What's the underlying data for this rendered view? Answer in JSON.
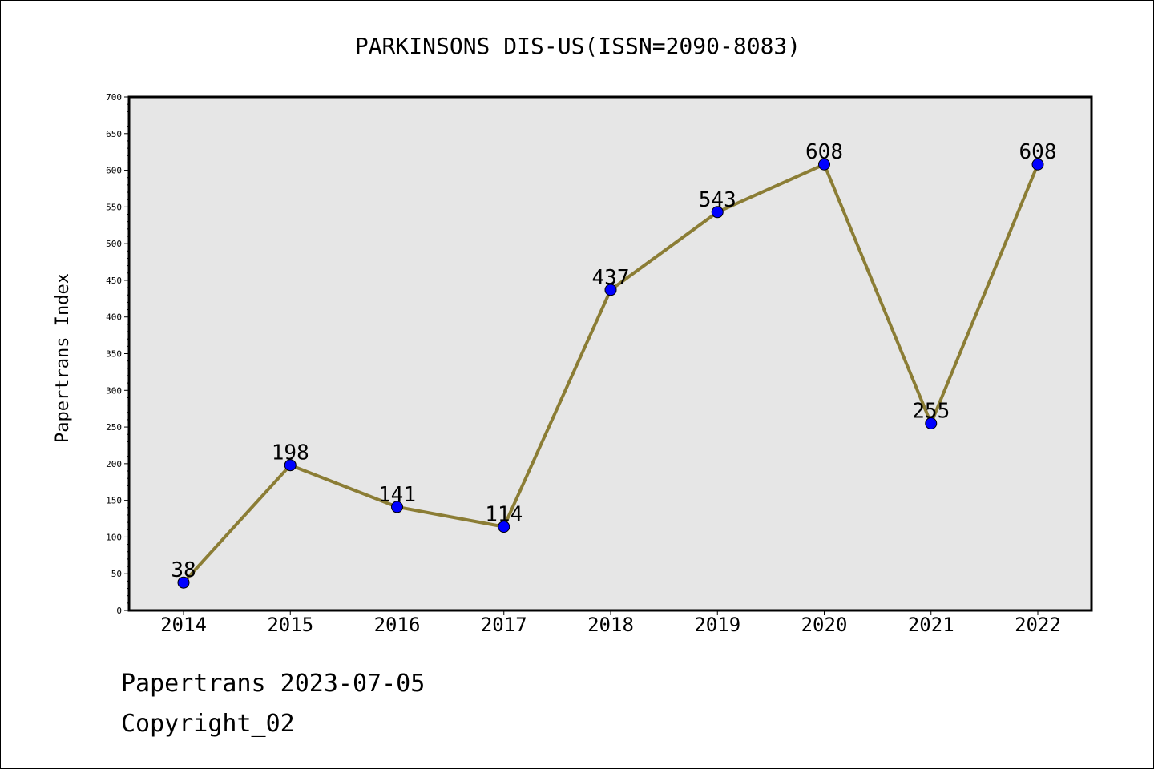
{
  "chart_data": {
    "type": "line",
    "title": "PARKINSONS DIS-US(ISSN=2090-8083)",
    "xlabel": "",
    "ylabel": "Papertrans Index",
    "categories": [
      "2014",
      "2015",
      "2016",
      "2017",
      "2018",
      "2019",
      "2020",
      "2021",
      "2022"
    ],
    "series": [
      {
        "values": [
          38,
          198,
          141,
          114,
          437,
          543,
          608,
          255,
          608
        ]
      }
    ],
    "ylim": [
      0,
      700
    ],
    "yticks": [
      0,
      50,
      100,
      150,
      200,
      250,
      300,
      350,
      400,
      450,
      500,
      550,
      600,
      650,
      700
    ],
    "grid": false,
    "colors": {
      "line": "#8b7d35",
      "marker": "#0000ff",
      "plot_bg": "#e6e6e6"
    }
  },
  "footer": {
    "line1": "Papertrans 2023-07-05",
    "line2": "Copyright_02"
  }
}
